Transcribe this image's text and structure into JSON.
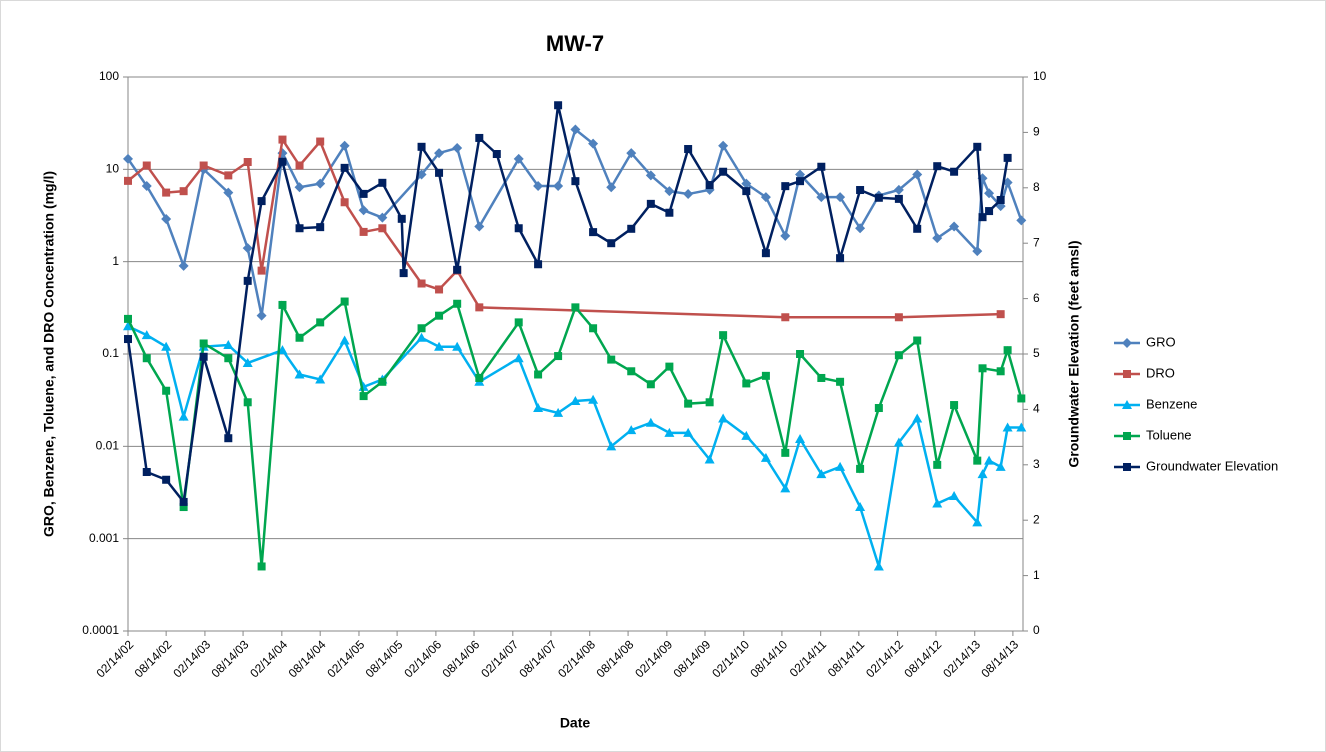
{
  "chart_data": {
    "type": "line",
    "title": "MW-7",
    "x_label": "Date",
    "y_label": "GRO, Benzene, Toluene,  and DRO Concentration (mg/l)",
    "y2_label": "Groundwater Elevation (feet amsl)",
    "y_scale": "log",
    "grid": true,
    "legend": "right",
    "xlim": [
      "2002-02-14",
      "2013-10-01"
    ],
    "xticks": [
      {
        "value": "2002-02-14",
        "label": "02/14/02"
      },
      {
        "value": "2002-08-14",
        "label": "08/14/02"
      },
      {
        "value": "2003-02-14",
        "label": "02/14/03"
      },
      {
        "value": "2003-08-14",
        "label": "08/14/03"
      },
      {
        "value": "2004-02-14",
        "label": "02/14/04"
      },
      {
        "value": "2004-08-14",
        "label": "08/14/04"
      },
      {
        "value": "2005-02-14",
        "label": "02/14/05"
      },
      {
        "value": "2005-08-14",
        "label": "08/14/05"
      },
      {
        "value": "2006-02-14",
        "label": "02/14/06"
      },
      {
        "value": "2006-08-14",
        "label": "08/14/06"
      },
      {
        "value": "2007-02-14",
        "label": "02/14/07"
      },
      {
        "value": "2007-08-14",
        "label": "08/14/07"
      },
      {
        "value": "2008-02-14",
        "label": "02/14/08"
      },
      {
        "value": "2008-08-14",
        "label": "08/14/08"
      },
      {
        "value": "2009-02-14",
        "label": "02/14/09"
      },
      {
        "value": "2009-08-14",
        "label": "08/14/09"
      },
      {
        "value": "2010-02-14",
        "label": "02/14/10"
      },
      {
        "value": "2010-08-14",
        "label": "08/14/10"
      },
      {
        "value": "2011-02-14",
        "label": "02/14/11"
      },
      {
        "value": "2011-08-14",
        "label": "08/14/11"
      },
      {
        "value": "2012-02-14",
        "label": "02/14/12"
      },
      {
        "value": "2012-08-14",
        "label": "08/14/12"
      },
      {
        "value": "2013-02-14",
        "label": "02/14/13"
      },
      {
        "value": "2013-08-14",
        "label": "08/14/13"
      }
    ],
    "ylim": [
      0.0001,
      100
    ],
    "yticks": [
      0.0001,
      0.001,
      0.01,
      0.1,
      1,
      10,
      100
    ],
    "y2lim": [
      0,
      10
    ],
    "y2ticks": [
      0,
      1,
      2,
      3,
      4,
      5,
      6,
      7,
      8,
      9,
      10
    ],
    "series": [
      {
        "name": "GRO",
        "color": "#4f81bd",
        "marker": "diamond",
        "x": [
          "2002-02-14",
          "2002-05-14",
          "2002-08-14",
          "2002-11-05",
          "2003-02-08",
          "2003-06-05",
          "2003-09-05",
          "2003-11-10",
          "2004-02-17",
          "2004-05-08",
          "2004-08-14",
          "2004-12-08",
          "2005-03-08",
          "2005-06-05",
          "2005-12-08",
          "2006-03-01",
          "2006-05-26",
          "2006-09-08",
          "2007-03-14",
          "2007-06-14",
          "2007-09-17",
          "2007-12-08",
          "2008-03-01",
          "2008-05-26",
          "2008-08-29",
          "2008-11-30",
          "2009-02-26",
          "2009-05-26",
          "2009-09-05",
          "2009-11-08",
          "2010-02-26",
          "2010-05-30",
          "2010-08-30",
          "2010-11-08",
          "2011-02-17",
          "2011-05-17",
          "2011-08-20",
          "2011-11-17",
          "2012-02-20",
          "2012-05-17",
          "2012-08-20",
          "2012-11-08",
          "2013-02-26",
          "2013-03-23",
          "2013-04-23",
          "2013-06-17",
          "2013-07-20",
          "2013-09-23"
        ],
        "values": [
          13,
          6.6,
          2.9,
          0.9,
          10,
          5.6,
          1.4,
          0.26,
          15,
          6.4,
          7,
          18,
          3.6,
          3,
          8.8,
          15,
          17,
          2.4,
          13,
          6.6,
          6.6,
          27,
          19,
          6.4,
          15,
          8.6,
          5.8,
          5.4,
          6,
          18,
          7,
          5,
          1.9,
          8.8,
          5,
          5,
          2.3,
          5.2,
          6,
          8.8,
          1.8,
          2.4,
          1.3,
          8,
          5.5,
          4,
          7.2,
          2.8
        ]
      },
      {
        "name": "DRO",
        "color": "#c0504d",
        "marker": "square",
        "x": [
          "2002-02-14",
          "2002-05-14",
          "2002-08-14",
          "2002-11-05",
          "2003-02-08",
          "2003-06-05",
          "2003-09-05",
          "2003-11-10",
          "2004-02-17",
          "2004-05-08",
          "2004-08-14",
          "2004-12-08",
          "2005-03-08",
          "2005-06-05",
          "2005-12-08",
          "2006-03-01",
          "2006-05-26",
          "2006-09-08",
          "2010-08-30",
          "2012-02-20",
          "2013-06-17"
        ],
        "values": [
          7.5,
          11,
          5.6,
          5.8,
          11,
          8.6,
          12,
          0.8,
          21,
          11,
          20,
          4.4,
          2.1,
          2.3,
          0.58,
          0.5,
          0.8,
          0.32,
          0.25,
          0.25,
          0.27
        ]
      },
      {
        "name": "Benzene",
        "color": "#00b0f0",
        "marker": "triangle",
        "x": [
          "2002-02-14",
          "2002-05-14",
          "2002-08-14",
          "2002-11-05",
          "2003-02-08",
          "2003-06-05",
          "2003-09-05",
          "2004-02-17",
          "2004-05-08",
          "2004-08-14",
          "2004-12-08",
          "2005-03-08",
          "2005-06-05",
          "2005-12-08",
          "2006-03-01",
          "2006-05-26",
          "2006-09-08",
          "2007-03-14",
          "2007-06-14",
          "2007-09-17",
          "2007-12-08",
          "2008-03-01",
          "2008-05-26",
          "2008-08-29",
          "2008-11-30",
          "2009-02-26",
          "2009-05-26",
          "2009-09-05",
          "2009-11-08",
          "2010-02-26",
          "2010-05-30",
          "2010-08-30",
          "2010-11-08",
          "2011-02-17",
          "2011-05-17",
          "2011-08-20",
          "2011-11-17",
          "2012-02-20",
          "2012-05-17",
          "2012-08-20",
          "2012-11-08",
          "2013-02-26",
          "2013-03-23",
          "2013-04-23",
          "2013-06-17",
          "2013-07-20",
          "2013-09-23"
        ],
        "values": [
          0.2,
          0.16,
          0.12,
          0.021,
          0.12,
          0.125,
          0.08,
          0.11,
          0.06,
          0.053,
          0.14,
          0.044,
          0.053,
          0.15,
          0.12,
          0.12,
          0.05,
          0.09,
          0.026,
          0.023,
          0.031,
          0.032,
          0.01,
          0.015,
          0.018,
          0.014,
          0.014,
          0.0072,
          0.02,
          0.013,
          0.0075,
          0.0035,
          0.012,
          0.005,
          0.006,
          0.0022,
          0.0005,
          0.011,
          0.02,
          0.0024,
          0.0029,
          0.0015,
          0.005,
          0.007,
          0.006,
          0.016,
          0.016
        ]
      },
      {
        "name": "Toluene",
        "color": "#00a64f",
        "marker": "square",
        "x": [
          "2002-02-14",
          "2002-05-14",
          "2002-08-14",
          "2002-11-05",
          "2003-02-08",
          "2003-06-05",
          "2003-09-05",
          "2003-11-10",
          "2004-02-17",
          "2004-05-08",
          "2004-08-14",
          "2004-12-08",
          "2005-03-08",
          "2005-06-05",
          "2005-12-08",
          "2006-03-01",
          "2006-05-26",
          "2006-09-08",
          "2007-03-14",
          "2007-06-14",
          "2007-09-17",
          "2007-12-08",
          "2008-03-01",
          "2008-05-26",
          "2008-08-29",
          "2008-11-30",
          "2009-02-26",
          "2009-05-26",
          "2009-09-05",
          "2009-11-08",
          "2010-02-26",
          "2010-05-30",
          "2010-08-30",
          "2010-11-08",
          "2011-02-17",
          "2011-05-17",
          "2011-08-20",
          "2011-11-17",
          "2012-02-20",
          "2012-05-17",
          "2012-08-20",
          "2012-11-08",
          "2013-02-26",
          "2013-03-23",
          "2013-06-17",
          "2013-07-20",
          "2013-09-23"
        ],
        "values": [
          0.24,
          0.09,
          0.04,
          0.0022,
          0.13,
          0.09,
          0.03,
          0.0005,
          0.34,
          0.15,
          0.22,
          0.37,
          0.035,
          0.05,
          0.19,
          0.26,
          0.35,
          0.055,
          0.22,
          0.06,
          0.095,
          0.32,
          0.19,
          0.087,
          0.065,
          0.047,
          0.073,
          0.029,
          0.03,
          0.16,
          0.048,
          0.058,
          0.0085,
          0.1,
          0.055,
          0.05,
          0.0057,
          0.026,
          0.097,
          0.14,
          0.0063,
          0.028,
          0.007,
          0.07,
          0.065,
          0.11,
          0.033
        ]
      },
      {
        "name": "Groundwater Elevation",
        "color": "#002060",
        "marker": "square",
        "axis": "y2",
        "x": [
          "2002-02-14",
          "2002-05-14",
          "2002-08-14",
          "2002-11-05",
          "2003-02-08",
          "2003-06-05",
          "2003-09-05",
          "2003-11-10",
          "2004-02-17",
          "2004-05-08",
          "2004-08-14",
          "2004-12-08",
          "2005-03-08",
          "2005-06-05",
          "2005-09-05",
          "2005-09-14",
          "2005-12-08",
          "2006-03-01",
          "2006-05-26",
          "2006-09-08",
          "2006-11-30",
          "2007-03-14",
          "2007-06-14",
          "2007-09-17",
          "2007-12-08",
          "2008-03-01",
          "2008-05-26",
          "2008-08-29",
          "2008-11-30",
          "2009-02-26",
          "2009-05-26",
          "2009-09-05",
          "2009-11-08",
          "2010-02-26",
          "2010-05-30",
          "2010-08-30",
          "2010-11-08",
          "2011-02-17",
          "2011-05-17",
          "2011-08-20",
          "2011-11-17",
          "2012-02-20",
          "2012-05-17",
          "2012-08-20",
          "2012-11-08",
          "2013-02-26",
          "2013-03-23",
          "2013-04-23",
          "2013-06-17",
          "2013-07-20"
        ],
        "values": [
          5.27,
          2.87,
          2.73,
          2.33,
          4.95,
          3.48,
          6.32,
          7.76,
          8.47,
          7.27,
          7.29,
          8.36,
          7.89,
          8.09,
          7.44,
          6.46,
          8.74,
          8.27,
          6.52,
          8.9,
          8.61,
          7.27,
          6.62,
          9.49,
          8.12,
          7.2,
          7.0,
          7.26,
          7.71,
          7.55,
          8.7,
          8.05,
          8.29,
          7.94,
          6.82,
          8.03,
          8.12,
          8.38,
          6.73,
          7.96,
          7.82,
          7.8,
          7.26,
          8.39,
          8.29,
          8.74,
          7.47,
          7.58,
          7.78,
          8.54
        ]
      }
    ]
  }
}
